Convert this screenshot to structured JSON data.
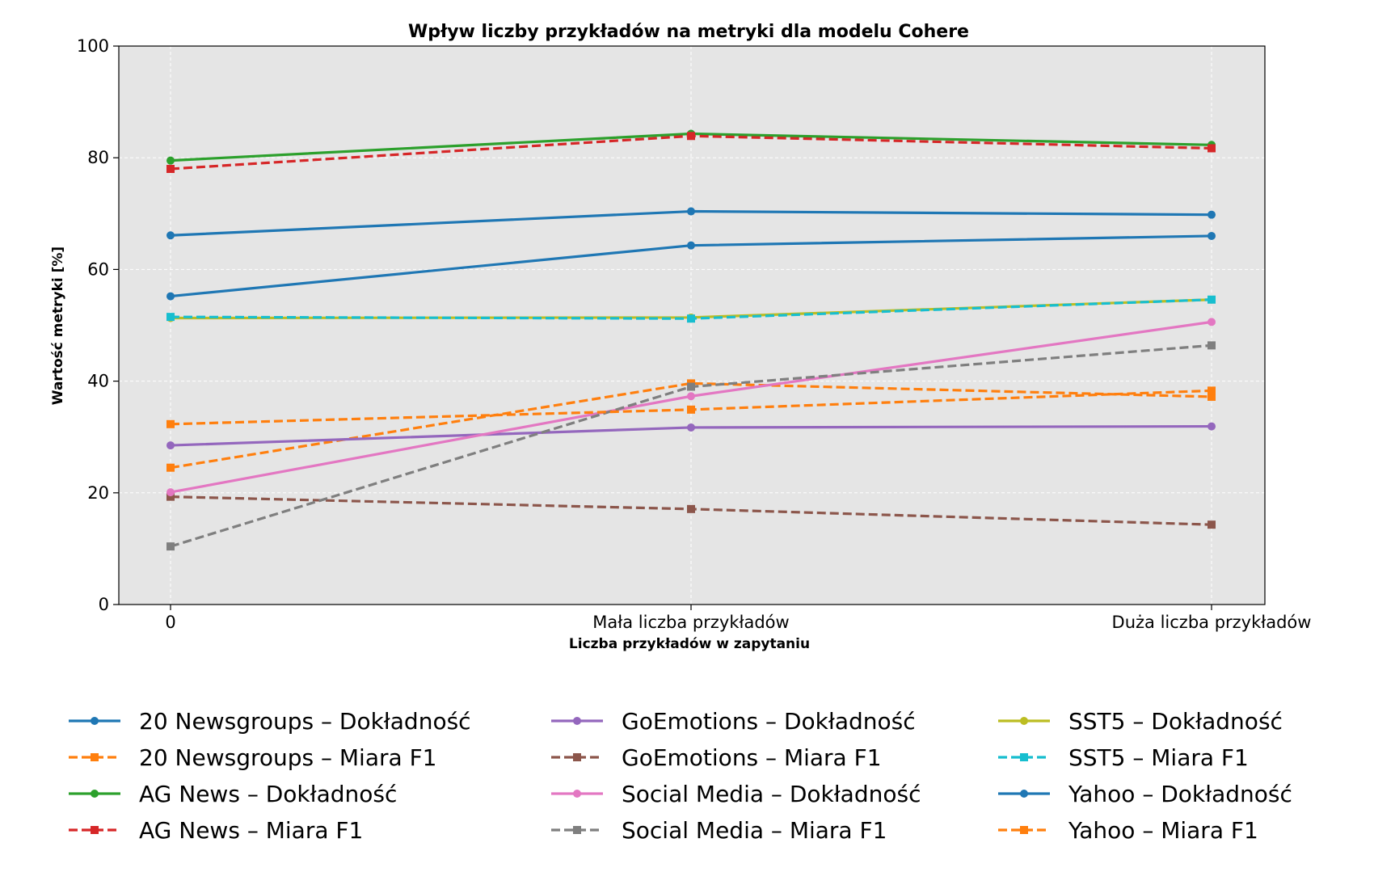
{
  "chart_data": {
    "type": "line",
    "title": "Wpływ liczby przykładów na metryki dla modelu Cohere",
    "xlabel": "Liczba przykładów w zapytaniu",
    "ylabel": "Wartość metryki [%]",
    "categories": [
      "0",
      "Mała liczba przykładów",
      "Duża liczba przykładów"
    ],
    "ylim": [
      0,
      100
    ],
    "yticks": [
      "0",
      "20",
      "40",
      "60",
      "80",
      "100"
    ],
    "grid": true,
    "legend_position": "bottom",
    "series": [
      {
        "name": "20 Newsgroups – Dokładność",
        "values": [
          55.2,
          64.3,
          66.0
        ],
        "color": "#1f77b4",
        "dash": "solid",
        "marker": "circle"
      },
      {
        "name": "20 Newsgroups – Miara F1",
        "values": [
          24.5,
          39.6,
          37.2
        ],
        "color": "#ff7f0e",
        "dash": "dashed",
        "marker": "square"
      },
      {
        "name": "AG News – Dokładność",
        "values": [
          79.5,
          84.3,
          82.3
        ],
        "color": "#2ca02c",
        "dash": "solid",
        "marker": "circle"
      },
      {
        "name": "AG News – Miara F1",
        "values": [
          78.0,
          83.9,
          81.7
        ],
        "color": "#d62728",
        "dash": "dashed",
        "marker": "square"
      },
      {
        "name": "GoEmotions – Dokładność",
        "values": [
          28.5,
          31.7,
          31.9
        ],
        "color": "#9467bd",
        "dash": "solid",
        "marker": "circle"
      },
      {
        "name": "GoEmotions – Miara F1",
        "values": [
          19.3,
          17.1,
          14.3
        ],
        "color": "#8c564b",
        "dash": "dashed",
        "marker": "square"
      },
      {
        "name": "Social Media – Dokładność",
        "values": [
          20.1,
          37.3,
          50.6
        ],
        "color": "#e377c2",
        "dash": "solid",
        "marker": "circle"
      },
      {
        "name": "Social Media – Miara F1",
        "values": [
          10.4,
          39.0,
          46.4
        ],
        "color": "#7f7f7f",
        "dash": "dashed",
        "marker": "square"
      },
      {
        "name": "SST5 – Dokładność",
        "values": [
          51.3,
          51.4,
          54.6
        ],
        "color": "#bcbd22",
        "dash": "solid",
        "marker": "circle"
      },
      {
        "name": "SST5 – Miara F1",
        "values": [
          51.5,
          51.2,
          54.6
        ],
        "color": "#17becf",
        "dash": "dashed",
        "marker": "square"
      },
      {
        "name": "Yahoo – Dokładność",
        "values": [
          66.1,
          70.4,
          69.8
        ],
        "color": "#1f77b4",
        "dash": "solid",
        "marker": "circle"
      },
      {
        "name": "Yahoo – Miara F1",
        "values": [
          32.3,
          34.9,
          38.3
        ],
        "color": "#ff7f0e",
        "dash": "dashed",
        "marker": "square"
      }
    ]
  }
}
